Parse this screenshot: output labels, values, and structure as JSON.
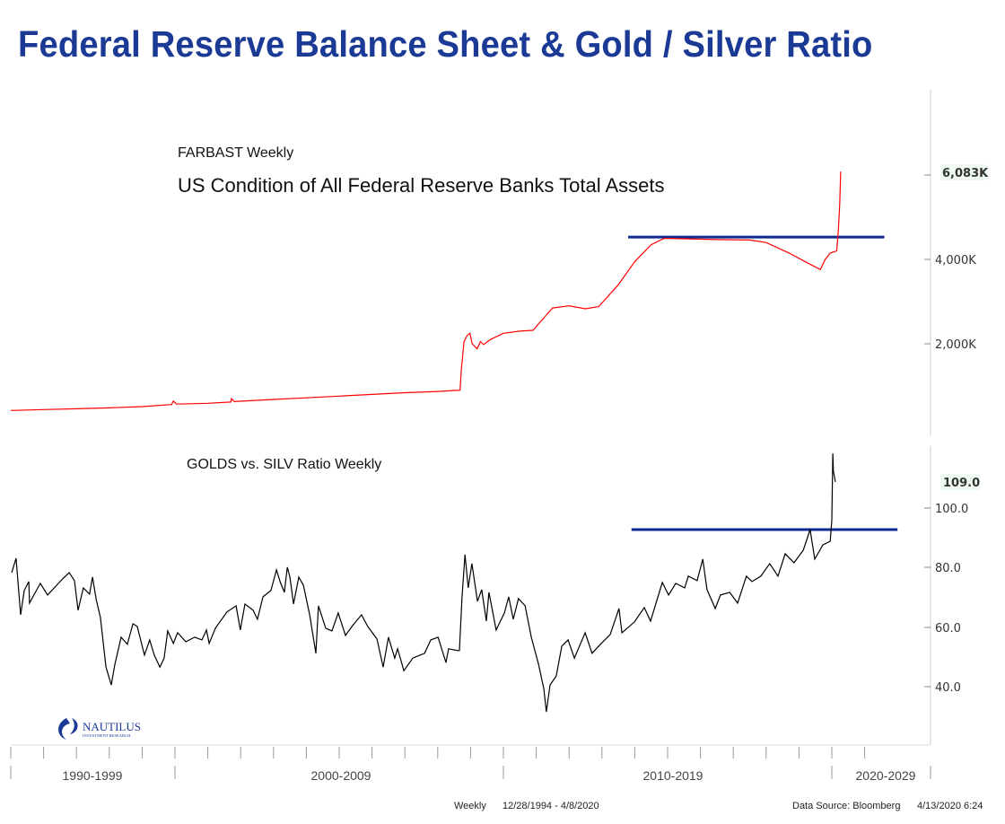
{
  "title": "Federal Reserve Balance Sheet & Gold / Silver Ratio",
  "colors": {
    "title": "#1b3a96",
    "fed_line": "#ff0000",
    "ratio_line": "#000000",
    "reference_line": "#0d2b8f",
    "last_value_bg": "#eefaf0"
  },
  "footer": {
    "frequency": "Weekly",
    "range": "12/28/1994 - 4/8/2020",
    "source": "Data Source: Bloomberg",
    "timestamp": "4/13/2020 6:24"
  },
  "logo": {
    "name": "NAUTILUS",
    "sub": "INVESTMENT RESEARCH"
  },
  "x_axis": {
    "decades": [
      "1990-1999",
      "2000-2009",
      "2010-2019",
      "2020-2029"
    ],
    "tick": "yearly"
  },
  "chart_data": [
    {
      "type": "line",
      "title": "FARBAST Weekly",
      "subtitle": "US Condition of All Federal Reserve Banks Total Assets",
      "y_ticks": [
        "2,000K",
        "4,000K"
      ],
      "last_value_label": "6,083K",
      "y_axis_side": "right",
      "reference_line": {
        "value": 4530,
        "from": 2013.8,
        "to": 2021.6
      },
      "series": [
        {
          "color": "#ff0000",
          "points": [
            [
              1995.0,
              420
            ],
            [
              1996.0,
              440
            ],
            [
              1997.0,
              460
            ],
            [
              1998.0,
              480
            ],
            [
              1999.0,
              510
            ],
            [
              1999.9,
              560
            ],
            [
              1999.95,
              640
            ],
            [
              2000.05,
              570
            ],
            [
              2001.0,
              590
            ],
            [
              2001.7,
              620
            ],
            [
              2001.72,
              700
            ],
            [
              2001.8,
              630
            ],
            [
              2003.0,
              680
            ],
            [
              2004.0,
              720
            ],
            [
              2005.0,
              760
            ],
            [
              2006.0,
              800
            ],
            [
              2007.0,
              840
            ],
            [
              2008.0,
              870
            ],
            [
              2008.68,
              900
            ],
            [
              2008.72,
              1400
            ],
            [
              2008.8,
              2050
            ],
            [
              2008.9,
              2200
            ],
            [
              2008.98,
              2250
            ],
            [
              2009.05,
              2000
            ],
            [
              2009.2,
              1880
            ],
            [
              2009.3,
              2050
            ],
            [
              2009.4,
              1980
            ],
            [
              2009.6,
              2100
            ],
            [
              2010.0,
              2250
            ],
            [
              2010.5,
              2300
            ],
            [
              2010.9,
              2320
            ],
            [
              2011.1,
              2500
            ],
            [
              2011.5,
              2850
            ],
            [
              2012.0,
              2900
            ],
            [
              2012.5,
              2830
            ],
            [
              2012.9,
              2880
            ],
            [
              2013.5,
              3400
            ],
            [
              2014.0,
              3950
            ],
            [
              2014.5,
              4350
            ],
            [
              2014.9,
              4500
            ],
            [
              2015.5,
              4490
            ],
            [
              2016.5,
              4470
            ],
            [
              2017.5,
              4460
            ],
            [
              2018.0,
              4400
            ],
            [
              2018.7,
              4150
            ],
            [
              2019.3,
              3900
            ],
            [
              2019.65,
              3760
            ],
            [
              2019.8,
              4000
            ],
            [
              2019.95,
              4150
            ],
            [
              2020.15,
              4200
            ],
            [
              2020.2,
              4700
            ],
            [
              2020.24,
              5300
            ],
            [
              2020.27,
              6083
            ]
          ]
        }
      ]
    },
    {
      "type": "line",
      "title": "GOLDS vs. SILV Ratio Weekly",
      "y_ticks": [
        "40.0",
        "60.0",
        "80.0",
        "100.0"
      ],
      "last_value_label": "109.0",
      "y_axis_side": "right",
      "reference_line": {
        "value": 92.8,
        "from": 2013.9,
        "to": 2022.0
      },
      "series": [
        {
          "color": "#000000",
          "points": [
            [
              1995.03,
              78.4
            ],
            [
              1995.16,
              83.2
            ],
            [
              1995.3,
              64.3
            ],
            [
              1995.41,
              72.4
            ],
            [
              1995.55,
              75.4
            ],
            [
              1995.57,
              68.2
            ],
            [
              1995.9,
              74.8
            ],
            [
              1996.12,
              70.9
            ],
            [
              1996.58,
              76.3
            ],
            [
              1996.78,
              78.4
            ],
            [
              1996.94,
              75.7
            ],
            [
              1997.05,
              65.8
            ],
            [
              1997.21,
              73.3
            ],
            [
              1997.4,
              71.2
            ],
            [
              1997.49,
              76.9
            ],
            [
              1997.6,
              69.4
            ],
            [
              1997.73,
              63.4
            ],
            [
              1997.9,
              46.8
            ],
            [
              1998.06,
              40.8
            ],
            [
              1998.17,
              47.7
            ],
            [
              1998.36,
              56.8
            ],
            [
              1998.55,
              54.4
            ],
            [
              1998.72,
              61.3
            ],
            [
              1998.85,
              60.4
            ],
            [
              1999.07,
              50.8
            ],
            [
              1999.23,
              55.9
            ],
            [
              1999.37,
              50.8
            ],
            [
              1999.54,
              46.8
            ],
            [
              1999.67,
              49.8
            ],
            [
              1999.78,
              58.9
            ],
            [
              1999.95,
              54.7
            ],
            [
              2000.08,
              58.3
            ],
            [
              2000.33,
              55.3
            ],
            [
              2000.6,
              56.8
            ],
            [
              2000.82,
              55.9
            ],
            [
              2000.96,
              59.2
            ],
            [
              2001.04,
              54.7
            ],
            [
              2001.23,
              59.8
            ],
            [
              2001.58,
              65.2
            ],
            [
              2001.86,
              67.3
            ],
            [
              2001.99,
              59.2
            ],
            [
              2002.13,
              67.9
            ],
            [
              2002.38,
              65.8
            ],
            [
              2002.51,
              62.8
            ],
            [
              2002.68,
              70.3
            ],
            [
              2002.92,
              72.4
            ],
            [
              2003.09,
              79.3
            ],
            [
              2003.2,
              75.4
            ],
            [
              2003.33,
              71.8
            ],
            [
              2003.42,
              80.2
            ],
            [
              2003.5,
              76.9
            ],
            [
              2003.61,
              67.9
            ],
            [
              2003.77,
              76.9
            ],
            [
              2003.91,
              74.2
            ],
            [
              2004.1,
              64.3
            ],
            [
              2004.29,
              51.4
            ],
            [
              2004.37,
              67.3
            ],
            [
              2004.59,
              59.8
            ],
            [
              2004.78,
              58.9
            ],
            [
              2004.97,
              64.9
            ],
            [
              2005.19,
              57.4
            ],
            [
              2005.41,
              60.7
            ],
            [
              2005.68,
              64.3
            ],
            [
              2005.87,
              60.4
            ],
            [
              2006.15,
              56.2
            ],
            [
              2006.34,
              46.8
            ],
            [
              2006.5,
              56.8
            ],
            [
              2006.69,
              49.8
            ],
            [
              2006.78,
              52.9
            ],
            [
              2006.97,
              45.6
            ],
            [
              2007.24,
              49.8
            ],
            [
              2007.6,
              51.4
            ],
            [
              2007.79,
              55.9
            ],
            [
              2008.01,
              56.8
            ],
            [
              2008.25,
              48.3
            ],
            [
              2008.33,
              52.9
            ],
            [
              2008.61,
              52.3
            ],
            [
              2008.66,
              52.3
            ],
            [
              2008.74,
              70.3
            ],
            [
              2008.83,
              84.4
            ],
            [
              2008.93,
              73.3
            ],
            [
              2009.04,
              81.4
            ],
            [
              2009.21,
              68.8
            ],
            [
              2009.34,
              72.7
            ],
            [
              2009.48,
              62.2
            ],
            [
              2009.56,
              71.8
            ],
            [
              2009.78,
              59.2
            ],
            [
              2010.03,
              64.9
            ],
            [
              2010.16,
              70.3
            ],
            [
              2010.3,
              62.8
            ],
            [
              2010.46,
              69.7
            ],
            [
              2010.66,
              67.3
            ],
            [
              2010.85,
              56.8
            ],
            [
              2011.07,
              47.7
            ],
            [
              2011.23,
              39.6
            ],
            [
              2011.31,
              31.8
            ],
            [
              2011.42,
              40.8
            ],
            [
              2011.61,
              43.8
            ],
            [
              2011.78,
              53.8
            ],
            [
              2011.97,
              55.9
            ],
            [
              2012.16,
              49.8
            ],
            [
              2012.49,
              58.3
            ],
            [
              2012.7,
              51.4
            ],
            [
              2012.98,
              54.7
            ],
            [
              2013.25,
              57.7
            ],
            [
              2013.52,
              66.4
            ],
            [
              2013.61,
              58.3
            ],
            [
              2013.99,
              61.9
            ],
            [
              2014.29,
              66.7
            ],
            [
              2014.48,
              62.2
            ],
            [
              2014.84,
              75.1
            ],
            [
              2015.03,
              70.9
            ],
            [
              2015.25,
              74.8
            ],
            [
              2015.52,
              73.3
            ],
            [
              2015.63,
              77.2
            ],
            [
              2015.9,
              75.7
            ],
            [
              2016.07,
              82.9
            ],
            [
              2016.2,
              72.7
            ],
            [
              2016.45,
              66.4
            ],
            [
              2016.61,
              70.9
            ],
            [
              2016.89,
              71.8
            ],
            [
              2017.13,
              68.2
            ],
            [
              2017.4,
              77.2
            ],
            [
              2017.57,
              75.4
            ],
            [
              2017.84,
              77.2
            ],
            [
              2018.11,
              81.4
            ],
            [
              2018.36,
              77.2
            ],
            [
              2018.58,
              84.7
            ],
            [
              2018.85,
              81.7
            ],
            [
              2019.13,
              85.9
            ],
            [
              2019.34,
              92.8
            ],
            [
              2019.48,
              82.9
            ],
            [
              2019.73,
              87.7
            ],
            [
              2019.95,
              88.9
            ],
            [
              2020.0,
              95.8
            ],
            [
              2020.03,
              118.3
            ],
            [
              2020.05,
              112.3
            ],
            [
              2020.11,
              108.7
            ]
          ]
        }
      ]
    }
  ]
}
